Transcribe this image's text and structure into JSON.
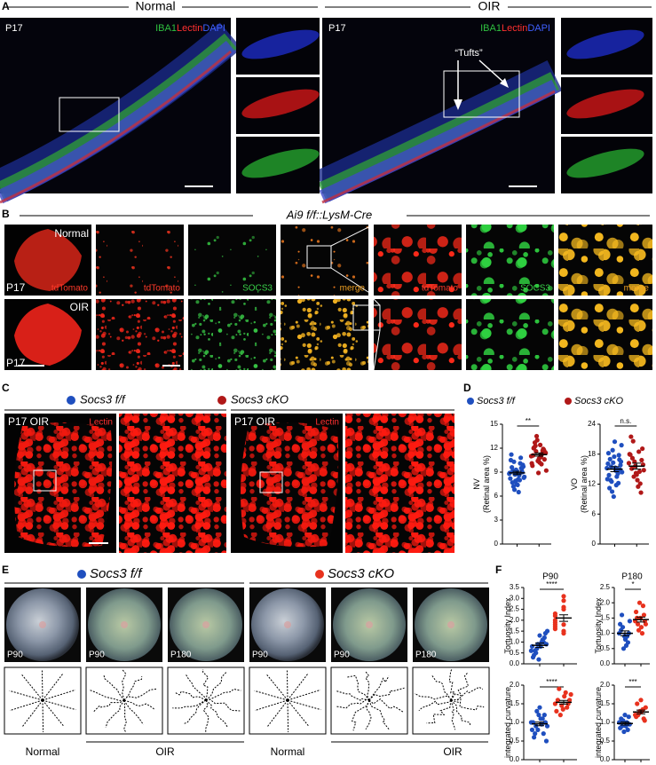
{
  "panels": {
    "A": {
      "label": "A",
      "normal_header": "Normal",
      "oir_header": "OIR",
      "normal_image": {
        "stage": "P17",
        "stain": [
          "IBA1",
          "Lectin",
          "DAPI"
        ]
      },
      "oir_image": {
        "stage": "P17",
        "stain": [
          "IBA1",
          "Lectin",
          "DAPI"
        ],
        "annotation": "“Tufts”"
      }
    },
    "B": {
      "label": "B",
      "title": "Ai9 f/f::LysM-Cre",
      "rows": [
        {
          "condition": "Normal",
          "stage": "P17",
          "labels": [
            "tdTomato",
            "tdTomato",
            "SOCS3",
            "merge",
            "tdTomato",
            "SOCS3",
            "merge"
          ]
        },
        {
          "condition": "OIR",
          "stage": "P17"
        }
      ]
    },
    "C": {
      "label": "C",
      "groups": [
        "Socs3 f/f",
        "Socs3 cKO"
      ],
      "images": [
        {
          "stage": "P17 OIR",
          "stain": "Lectin"
        },
        {
          "stage": "P17 OIR",
          "stain": "Lectin"
        }
      ]
    },
    "D": {
      "label": "D",
      "legend": [
        "Socs3 f/f",
        "Socs3 cKO"
      ]
    },
    "E": {
      "label": "E",
      "groups": [
        "Socs3 f/f",
        "Socs3 cKO"
      ],
      "image_stages": [
        "P90",
        "P90",
        "P180",
        "P90",
        "P90",
        "P180"
      ],
      "conditions": [
        "Normal",
        "OIR",
        "Normal",
        "OIR"
      ]
    },
    "F": {
      "label": "F"
    }
  },
  "chart_data": [
    {
      "type": "strip",
      "ylabel": [
        "NV",
        "(Retinal area %)"
      ],
      "significance": "**",
      "ylim": [
        0,
        15
      ],
      "yticks": [
        0,
        3,
        6,
        9,
        12,
        15
      ],
      "series": [
        {
          "color": "#1f4fbf",
          "mean": 8.9,
          "sem": 0.2,
          "values": [
            8.8,
            9.2,
            7.5,
            10.1,
            8.3,
            9.6,
            7.9,
            8.6,
            9.9,
            10.5,
            6.8,
            8.1,
            9.4,
            8.9,
            7.2,
            9.1,
            10.8,
            8.4,
            7.7,
            9.3,
            8.0,
            9.7,
            11.2,
            8.7,
            6.5,
            9.0,
            8.2,
            10.3,
            7.4,
            9.5
          ]
        },
        {
          "color": "#b01818",
          "mean": 11.2,
          "sem": 0.2,
          "values": [
            11.0,
            12.3,
            10.2,
            11.8,
            9.8,
            13.5,
            10.9,
            11.5,
            12.0,
            10.4,
            11.3,
            9.2,
            12.7,
            10.7,
            11.9,
            10.1,
            11.6,
            12.4,
            10.6,
            11.1,
            13.0,
            10.0,
            11.4,
            12.1,
            8.9,
            11.7
          ]
        }
      ]
    },
    {
      "type": "strip",
      "ylabel": [
        "VO",
        "(Retinal area %)"
      ],
      "significance": "n.s.",
      "ylim": [
        0,
        24
      ],
      "yticks": [
        0,
        6,
        12,
        18,
        24
      ],
      "series": [
        {
          "color": "#1f4fbf",
          "mean": 15.0,
          "sem": 0.5,
          "values": [
            15.2,
            12.8,
            17.5,
            14.1,
            19.8,
            11.2,
            16.3,
            13.5,
            15.8,
            18.2,
            10.5,
            14.7,
            16.9,
            13.0,
            15.5,
            20.5,
            12.2,
            14.4,
            17.0,
            9.5,
            15.0,
            16.5,
            13.8,
            18.8,
            11.8,
            14.9,
            16.1,
            12.5,
            15.3,
            17.8
          ]
        },
        {
          "color": "#b01818",
          "mean": 15.6,
          "sem": 0.6,
          "values": [
            16.2,
            13.5,
            18.5,
            14.8,
            20.6,
            11.5,
            15.9,
            17.2,
            12.8,
            19.1,
            15.1,
            13.9,
            16.8,
            21.5,
            14.2,
            10.3,
            17.9,
            15.6,
            12.1,
            18.0,
            16.5,
            14.5
          ]
        }
      ]
    },
    {
      "type": "strip",
      "title": "P90",
      "ylabel": [
        "Tortuosity Index"
      ],
      "significance": "****",
      "ylim": [
        0,
        3.5
      ],
      "yticks": [
        {
          "value": 0,
          "label": "0.0"
        },
        0.5,
        {
          "value": 1,
          "label": "1.0"
        },
        1.5,
        {
          "value": 2,
          "label": "2.0"
        },
        2.5,
        {
          "value": 3,
          "label": "3.0"
        },
        3.5
      ],
      "series": [
        {
          "color": "#1f4fbf",
          "mean": 0.85,
          "sem": 0.1,
          "values": [
            0.6,
            0.9,
            1.2,
            0.4,
            0.8,
            1.5,
            0.7,
            1.0,
            0.3,
            1.3,
            0.9,
            0.5,
            1.1,
            0.8,
            0.2,
            1.4,
            0.6,
            1.0
          ]
        },
        {
          "color": "#e8321e",
          "mean": 2.1,
          "sem": 0.15,
          "values": [
            1.8,
            2.5,
            1.6,
            2.9,
            2.0,
            1.5,
            2.2,
            3.1,
            1.7,
            2.6,
            1.9,
            1.4,
            2.3,
            1.8
          ]
        }
      ]
    },
    {
      "type": "strip",
      "title": "P180",
      "ylabel": [
        "Tortuosity Index"
      ],
      "significance": "*",
      "ylim": [
        0,
        2.5
      ],
      "yticks": [
        {
          "value": 0,
          "label": "0.0"
        },
        0.5,
        {
          "value": 1,
          "label": "1.0"
        },
        1.5,
        {
          "value": 2,
          "label": "2.0"
        },
        2.5
      ],
      "series": [
        {
          "color": "#1f4fbf",
          "mean": 1.0,
          "sem": 0.08,
          "values": [
            1.0,
            0.8,
            1.3,
            0.6,
            1.1,
            0.9,
            1.6,
            0.7,
            1.2,
            1.0,
            0.5,
            1.4,
            0.9
          ]
        },
        {
          "color": "#e8321e",
          "mean": 1.45,
          "sem": 0.08,
          "values": [
            1.4,
            1.2,
            1.7,
            1.0,
            1.5,
            1.9,
            1.3,
            1.6,
            1.1,
            1.4,
            2.0,
            1.3,
            1.5
          ]
        }
      ]
    },
    {
      "type": "strip",
      "ylabel": [
        "integrated curvature"
      ],
      "significance": "****",
      "ylim": [
        0,
        2
      ],
      "yticks": [
        {
          "value": 0,
          "label": "0.0"
        },
        0.5,
        {
          "value": 1,
          "label": "1.0"
        },
        1.5,
        {
          "value": 2,
          "label": "2.0"
        }
      ],
      "series": [
        {
          "color": "#1f4fbf",
          "mean": 0.96,
          "sem": 0.05,
          "values": [
            1.0,
            0.8,
            1.2,
            0.6,
            1.1,
            0.9,
            1.3,
            0.7,
            1.0,
            1.4,
            0.5,
            0.9,
            1.1,
            0.8,
            1.2,
            1.0,
            0.7,
            0.95
          ]
        },
        {
          "color": "#e8321e",
          "mean": 1.54,
          "sem": 0.05,
          "values": [
            1.5,
            1.7,
            1.3,
            1.8,
            1.6,
            1.4,
            1.9,
            1.5,
            1.2,
            1.6,
            1.45,
            1.75,
            1.35
          ]
        }
      ]
    },
    {
      "type": "strip",
      "ylabel": [
        "integrated curvature"
      ],
      "significance": "***",
      "ylim": [
        0,
        2
      ],
      "yticks": [
        {
          "value": 0,
          "label": "0.0"
        },
        0.5,
        {
          "value": 1,
          "label": "1.0"
        },
        1.5,
        {
          "value": 2,
          "label": "2.0"
        }
      ],
      "series": [
        {
          "color": "#1f4fbf",
          "mean": 0.97,
          "sem": 0.04,
          "values": [
            1.0,
            0.9,
            1.1,
            0.8,
            1.05,
            0.95,
            1.2,
            0.85,
            1.0,
            0.9,
            1.15,
            0.75
          ]
        },
        {
          "color": "#e8321e",
          "mean": 1.28,
          "sem": 0.05,
          "values": [
            1.2,
            1.3,
            1.5,
            1.1,
            1.25,
            1.4,
            1.6,
            1.15,
            1.35,
            1.2,
            1.05,
            1.3
          ]
        }
      ]
    }
  ]
}
